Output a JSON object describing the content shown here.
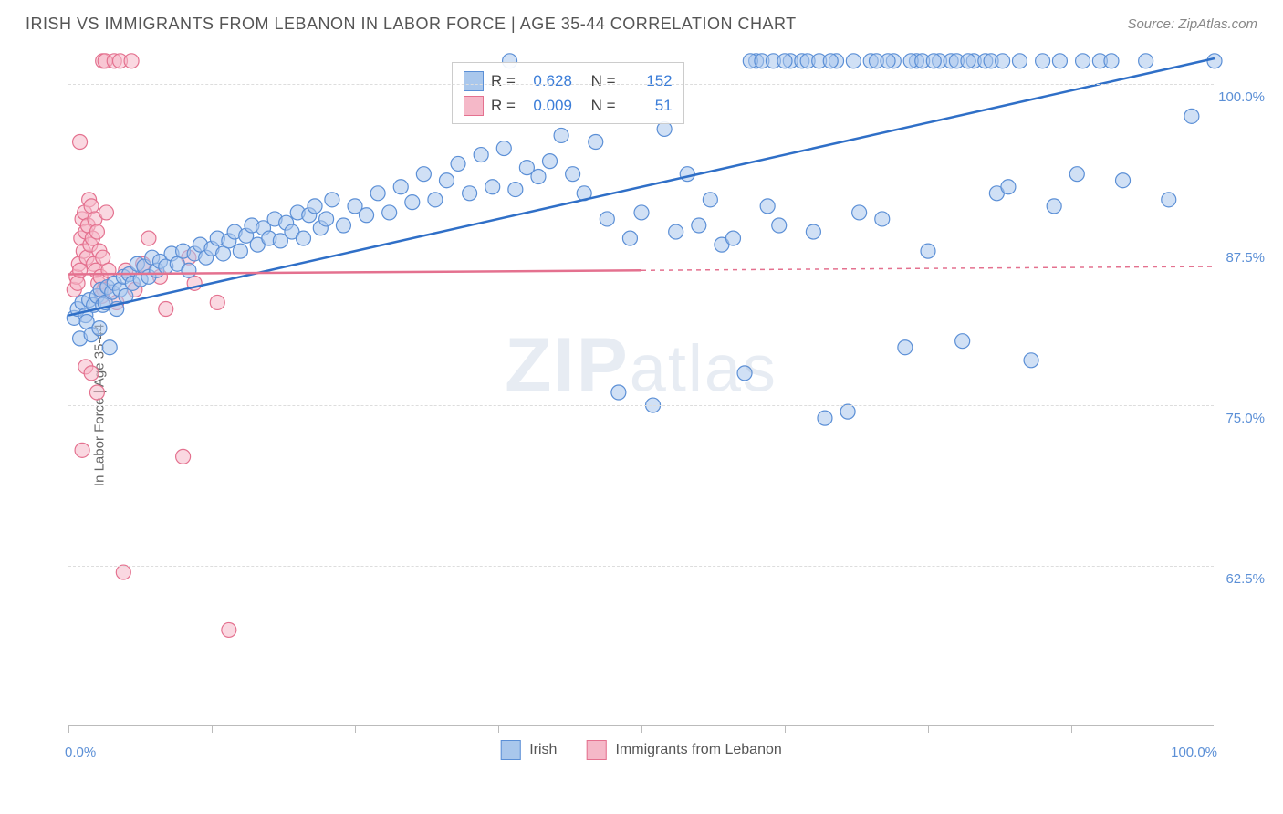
{
  "header": {
    "title": "IRISH VS IMMIGRANTS FROM LEBANON IN LABOR FORCE | AGE 35-44 CORRELATION CHART",
    "source": "Source: ZipAtlas.com"
  },
  "chart": {
    "type": "scatter",
    "y_axis_title": "In Labor Force | Age 35-44",
    "xlim": [
      0,
      100
    ],
    "ylim": [
      50,
      102
    ],
    "x_ticks": [
      0,
      12.5,
      25,
      37.5,
      50,
      62.5,
      75,
      87.5,
      100
    ],
    "x_tick_labels": {
      "0": "0.0%",
      "100": "100.0%"
    },
    "y_gridlines": [
      62.5,
      75.0,
      87.5,
      100.0
    ],
    "y_tick_labels": [
      "62.5%",
      "75.0%",
      "87.5%",
      "100.0%"
    ],
    "label_fontsize": 15,
    "label_color": "#5b8fd6",
    "grid_color": "#dddddd",
    "axis_color": "#bbbbbb",
    "background_color": "#ffffff",
    "marker_radius": 8,
    "marker_stroke_width": 1.2,
    "trend_line_width": 2.5,
    "series": [
      {
        "name": "Irish",
        "fill": "#a9c7ec",
        "stroke": "#5b8fd6",
        "fill_opacity": 0.55,
        "r_value": "0.628",
        "n_value": "152",
        "trend": {
          "x1": 0,
          "y1": 82.0,
          "x2": 100,
          "y2": 102.0,
          "color": "#2f6fc7",
          "dash_after_x": null
        },
        "points": [
          [
            0.5,
            81.8
          ],
          [
            0.8,
            82.5
          ],
          [
            1.0,
            80.2
          ],
          [
            1.2,
            83.0
          ],
          [
            1.5,
            82.0
          ],
          [
            1.6,
            81.5
          ],
          [
            1.8,
            83.2
          ],
          [
            2.0,
            80.5
          ],
          [
            2.2,
            82.8
          ],
          [
            2.5,
            83.5
          ],
          [
            2.7,
            81.0
          ],
          [
            2.8,
            84.0
          ],
          [
            3.0,
            82.8
          ],
          [
            3.2,
            83.0
          ],
          [
            3.4,
            84.2
          ],
          [
            3.6,
            79.5
          ],
          [
            3.8,
            83.8
          ],
          [
            4.0,
            84.5
          ],
          [
            4.2,
            82.5
          ],
          [
            4.5,
            84.0
          ],
          [
            4.8,
            85.0
          ],
          [
            5.0,
            83.5
          ],
          [
            5.3,
            85.2
          ],
          [
            5.6,
            84.5
          ],
          [
            6.0,
            86.0
          ],
          [
            6.3,
            84.8
          ],
          [
            6.6,
            85.8
          ],
          [
            7.0,
            85.0
          ],
          [
            7.3,
            86.5
          ],
          [
            7.7,
            85.5
          ],
          [
            8.0,
            86.2
          ],
          [
            8.5,
            85.8
          ],
          [
            9.0,
            86.8
          ],
          [
            9.5,
            86.0
          ],
          [
            10.0,
            87.0
          ],
          [
            10.5,
            85.5
          ],
          [
            11.0,
            86.8
          ],
          [
            11.5,
            87.5
          ],
          [
            12.0,
            86.5
          ],
          [
            12.5,
            87.2
          ],
          [
            13.0,
            88.0
          ],
          [
            13.5,
            86.8
          ],
          [
            14.0,
            87.8
          ],
          [
            14.5,
            88.5
          ],
          [
            15.0,
            87.0
          ],
          [
            15.5,
            88.2
          ],
          [
            16.0,
            89.0
          ],
          [
            16.5,
            87.5
          ],
          [
            17.0,
            88.8
          ],
          [
            17.5,
            88.0
          ],
          [
            18.0,
            89.5
          ],
          [
            18.5,
            87.8
          ],
          [
            19.0,
            89.2
          ],
          [
            19.5,
            88.5
          ],
          [
            20.0,
            90.0
          ],
          [
            20.5,
            88.0
          ],
          [
            21.0,
            89.8
          ],
          [
            21.5,
            90.5
          ],
          [
            22.0,
            88.8
          ],
          [
            22.5,
            89.5
          ],
          [
            23.0,
            91.0
          ],
          [
            24.0,
            89.0
          ],
          [
            25.0,
            90.5
          ],
          [
            26.0,
            89.8
          ],
          [
            27.0,
            91.5
          ],
          [
            28.0,
            90.0
          ],
          [
            29.0,
            92.0
          ],
          [
            30.0,
            90.8
          ],
          [
            31.0,
            93.0
          ],
          [
            32.0,
            91.0
          ],
          [
            33.0,
            92.5
          ],
          [
            34.0,
            93.8
          ],
          [
            35.0,
            91.5
          ],
          [
            36.0,
            94.5
          ],
          [
            37.0,
            92.0
          ],
          [
            38.0,
            95.0
          ],
          [
            39.0,
            91.8
          ],
          [
            40.0,
            93.5
          ],
          [
            41.0,
            92.8
          ],
          [
            42.0,
            94.0
          ],
          [
            43.0,
            96.0
          ],
          [
            44.0,
            93.0
          ],
          [
            45.0,
            91.5
          ],
          [
            46.0,
            95.5
          ],
          [
            47.0,
            89.5
          ],
          [
            48.0,
            76.0
          ],
          [
            49.0,
            88.0
          ],
          [
            50.0,
            90.0
          ],
          [
            51.0,
            75.0
          ],
          [
            52.0,
            96.5
          ],
          [
            53.0,
            88.5
          ],
          [
            54.0,
            93.0
          ],
          [
            55.0,
            89.0
          ],
          [
            56.0,
            91.0
          ],
          [
            57.0,
            87.5
          ],
          [
            58.0,
            88.0
          ],
          [
            59.0,
            77.5
          ],
          [
            60.0,
            101.8
          ],
          [
            61.0,
            90.5
          ],
          [
            62.0,
            89.0
          ],
          [
            63.0,
            101.8
          ],
          [
            64.0,
            101.8
          ],
          [
            65.0,
            88.5
          ],
          [
            66.0,
            74.0
          ],
          [
            67.0,
            101.8
          ],
          [
            68.0,
            74.5
          ],
          [
            69.0,
            90.0
          ],
          [
            70.0,
            101.8
          ],
          [
            71.0,
            89.5
          ],
          [
            72.0,
            101.8
          ],
          [
            73.0,
            79.5
          ],
          [
            74.0,
            101.8
          ],
          [
            75.0,
            87.0
          ],
          [
            76.0,
            101.8
          ],
          [
            77.0,
            101.8
          ],
          [
            78.0,
            80.0
          ],
          [
            79.0,
            101.8
          ],
          [
            80.0,
            101.8
          ],
          [
            81.0,
            91.5
          ],
          [
            82.0,
            92.0
          ],
          [
            83.0,
            101.8
          ],
          [
            84.0,
            78.5
          ],
          [
            85.0,
            101.8
          ],
          [
            86.0,
            90.5
          ],
          [
            88.0,
            93.0
          ],
          [
            90.0,
            101.8
          ],
          [
            92.0,
            92.5
          ],
          [
            94.0,
            101.8
          ],
          [
            96.0,
            91.0
          ],
          [
            98.0,
            97.5
          ],
          [
            100.0,
            101.8
          ],
          [
            59.5,
            101.8
          ],
          [
            60.5,
            101.8
          ],
          [
            61.5,
            101.8
          ],
          [
            62.5,
            101.8
          ],
          [
            64.5,
            101.8
          ],
          [
            65.5,
            101.8
          ],
          [
            66.5,
            101.8
          ],
          [
            68.5,
            101.8
          ],
          [
            70.5,
            101.8
          ],
          [
            71.5,
            101.8
          ],
          [
            73.5,
            101.8
          ],
          [
            74.5,
            101.8
          ],
          [
            75.5,
            101.8
          ],
          [
            77.5,
            101.8
          ],
          [
            78.5,
            101.8
          ],
          [
            80.5,
            101.8
          ],
          [
            81.5,
            101.8
          ],
          [
            86.5,
            101.8
          ],
          [
            88.5,
            101.8
          ],
          [
            91.0,
            101.8
          ],
          [
            38.5,
            101.8
          ]
        ]
      },
      {
        "name": "Immigrants from Lebanon",
        "fill": "#f5b8c8",
        "stroke": "#e4718f",
        "fill_opacity": 0.55,
        "r_value": "0.009",
        "n_value": "51",
        "trend": {
          "x1": 0,
          "y1": 85.2,
          "x2": 100,
          "y2": 85.8,
          "color": "#e4718f",
          "dash_after_x": 50
        },
        "points": [
          [
            0.5,
            84.0
          ],
          [
            0.7,
            85.0
          ],
          [
            0.8,
            84.5
          ],
          [
            0.9,
            86.0
          ],
          [
            1.0,
            85.5
          ],
          [
            1.1,
            88.0
          ],
          [
            1.2,
            89.5
          ],
          [
            1.3,
            87.0
          ],
          [
            1.4,
            90.0
          ],
          [
            1.5,
            88.5
          ],
          [
            1.6,
            86.5
          ],
          [
            1.7,
            89.0
          ],
          [
            1.8,
            91.0
          ],
          [
            1.9,
            87.5
          ],
          [
            2.0,
            90.5
          ],
          [
            2.1,
            88.0
          ],
          [
            2.2,
            86.0
          ],
          [
            2.3,
            89.5
          ],
          [
            2.4,
            85.5
          ],
          [
            2.5,
            88.5
          ],
          [
            2.6,
            84.5
          ],
          [
            2.7,
            87.0
          ],
          [
            2.8,
            85.0
          ],
          [
            2.9,
            83.5
          ],
          [
            3.0,
            86.5
          ],
          [
            3.1,
            84.0
          ],
          [
            3.3,
            90.0
          ],
          [
            3.5,
            85.5
          ],
          [
            1.0,
            95.5
          ],
          [
            1.5,
            78.0
          ],
          [
            2.0,
            77.5
          ],
          [
            2.5,
            76.0
          ],
          [
            1.2,
            71.5
          ],
          [
            3.0,
            101.8
          ],
          [
            3.2,
            101.8
          ],
          [
            4.0,
            101.8
          ],
          [
            4.5,
            101.8
          ],
          [
            5.5,
            101.8
          ],
          [
            4.2,
            83.0
          ],
          [
            5.0,
            85.5
          ],
          [
            5.8,
            84.0
          ],
          [
            6.5,
            86.0
          ],
          [
            7.0,
            88.0
          ],
          [
            8.0,
            85.0
          ],
          [
            8.5,
            82.5
          ],
          [
            10.5,
            86.5
          ],
          [
            11.0,
            84.5
          ],
          [
            13.0,
            83.0
          ],
          [
            4.8,
            62.0
          ],
          [
            10.0,
            71.0
          ],
          [
            14.0,
            57.5
          ]
        ]
      }
    ],
    "legend_top": {
      "r_label": "R =",
      "n_label": "N ="
    },
    "legend_bottom": {
      "items": [
        "Irish",
        "Immigrants from Lebanon"
      ]
    },
    "watermark": {
      "z": "ZIP",
      "rest": "atlas"
    }
  }
}
